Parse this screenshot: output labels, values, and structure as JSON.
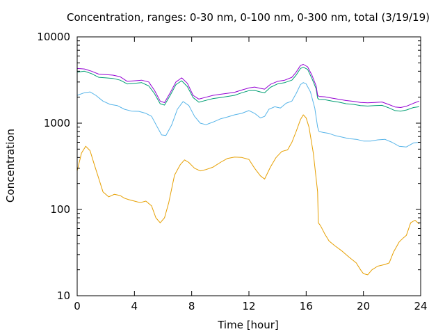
{
  "chart_data": {
    "type": "line",
    "title": "Concentration, ranges: 0-30 nm, 0-100 nm, 0-300 nm, total (3/19/19)",
    "xlabel": "Time [hour]",
    "ylabel": "Concentration",
    "xlim": [
      0,
      24
    ],
    "ylim": [
      10,
      10000
    ],
    "yscale": "log",
    "grid": false,
    "legend": "none",
    "x_ticks": [
      0,
      4,
      8,
      12,
      16,
      20,
      24
    ],
    "x_tick_labels": [
      "0",
      "4",
      "8",
      "12",
      "16",
      "20",
      "24"
    ],
    "y_ticks": [
      10,
      100,
      1000,
      10000
    ],
    "y_tick_labels": [
      "10",
      "100",
      "1000",
      "10000"
    ],
    "series": [
      {
        "color": "#e69f00",
        "x": [
          0,
          0.3,
          0.6,
          0.9,
          1.2,
          1.5,
          1.8,
          2.2,
          2.6,
          3.0,
          3.3,
          3.6,
          4.0,
          4.4,
          4.8,
          5.2,
          5.5,
          5.8,
          6.1,
          6.4,
          6.8,
          7.2,
          7.5,
          7.8,
          8.2,
          8.6,
          9.0,
          9.5,
          10.0,
          10.5,
          11.0,
          11.5,
          12.0,
          12.4,
          12.8,
          13.1,
          13.5,
          13.9,
          14.3,
          14.7,
          15.0,
          15.3,
          15.6,
          15.8,
          16.0,
          16.2,
          16.5,
          16.8,
          16.85,
          17.0,
          17.3,
          17.6,
          18.0,
          18.5,
          19.0,
          19.5,
          19.8,
          20.0,
          20.3,
          20.6,
          21.0,
          21.5,
          21.8,
          22.1,
          22.5,
          22.8,
          23.0,
          23.3,
          23.6,
          23.9
        ],
        "values": [
          280,
          450,
          540,
          480,
          330,
          230,
          160,
          140,
          150,
          145,
          135,
          130,
          125,
          120,
          125,
          110,
          80,
          70,
          80,
          120,
          250,
          330,
          375,
          350,
          300,
          280,
          290,
          310,
          350,
          390,
          405,
          400,
          380,
          300,
          245,
          225,
          310,
          400,
          470,
          490,
          600,
          800,
          1100,
          1250,
          1150,
          900,
          450,
          160,
          70,
          65,
          52,
          43,
          38,
          33,
          28,
          24,
          20,
          18,
          17.5,
          20,
          22,
          23,
          24,
          32,
          42,
          47,
          50,
          70,
          75,
          68
        ]
      },
      {
        "color": "#56b4e9",
        "x": [
          0,
          0.5,
          0.9,
          1.3,
          1.8,
          2.3,
          2.8,
          3.3,
          3.8,
          4.3,
          4.8,
          5.2,
          5.6,
          5.9,
          6.2,
          6.6,
          7.0,
          7.4,
          7.8,
          8.2,
          8.6,
          9.0,
          9.5,
          10.0,
          10.5,
          11.0,
          11.5,
          12.0,
          12.4,
          12.8,
          13.1,
          13.4,
          13.8,
          14.2,
          14.6,
          15.0,
          15.3,
          15.6,
          15.8,
          16.0,
          16.3,
          16.6,
          16.8,
          16.9,
          17.2,
          17.6,
          18.0,
          18.5,
          19.0,
          19.5,
          20.0,
          20.5,
          21.0,
          21.5,
          22.0,
          22.5,
          23.0,
          23.5,
          23.9
        ],
        "values": [
          2100,
          2250,
          2300,
          2100,
          1800,
          1650,
          1600,
          1450,
          1380,
          1370,
          1300,
          1200,
          900,
          730,
          720,
          950,
          1450,
          1780,
          1600,
          1200,
          1000,
          960,
          1030,
          1120,
          1180,
          1250,
          1300,
          1400,
          1300,
          1150,
          1200,
          1450,
          1550,
          1500,
          1700,
          1800,
          2200,
          2800,
          2950,
          2850,
          2300,
          1500,
          900,
          800,
          780,
          760,
          720,
          690,
          660,
          650,
          620,
          620,
          640,
          650,
          600,
          540,
          530,
          590,
          600
        ]
      },
      {
        "color": "#009e73",
        "x": [
          0,
          0.5,
          1.0,
          1.5,
          2.0,
          2.5,
          3.0,
          3.5,
          4.0,
          4.5,
          5.0,
          5.4,
          5.8,
          6.1,
          6.5,
          6.9,
          7.3,
          7.7,
          8.1,
          8.5,
          9.0,
          9.5,
          10.0,
          10.5,
          11.0,
          11.5,
          12.0,
          12.4,
          12.8,
          13.1,
          13.5,
          14.0,
          14.5,
          15.0,
          15.3,
          15.6,
          15.8,
          16.1,
          16.4,
          16.7,
          16.8,
          16.9,
          17.3,
          17.8,
          18.3,
          18.8,
          19.3,
          19.8,
          20.3,
          20.8,
          21.3,
          21.8,
          22.2,
          22.6,
          23.0,
          23.5,
          23.9
        ],
        "values": [
          3900,
          4000,
          3750,
          3400,
          3350,
          3300,
          3150,
          2850,
          2900,
          2950,
          2700,
          2200,
          1680,
          1620,
          2100,
          2800,
          3100,
          2650,
          1980,
          1750,
          1840,
          1930,
          1980,
          2040,
          2100,
          2250,
          2380,
          2400,
          2300,
          2250,
          2600,
          2850,
          2950,
          3150,
          3600,
          4300,
          4450,
          4200,
          3300,
          2500,
          1950,
          1880,
          1870,
          1800,
          1750,
          1680,
          1650,
          1600,
          1580,
          1600,
          1610,
          1500,
          1400,
          1380,
          1420,
          1520,
          1550
        ]
      },
      {
        "color": "#9400d3",
        "x": [
          0,
          0.5,
          1.0,
          1.5,
          2.0,
          2.5,
          3.0,
          3.5,
          4.0,
          4.5,
          5.0,
          5.4,
          5.8,
          6.1,
          6.5,
          6.9,
          7.3,
          7.7,
          8.1,
          8.5,
          9.0,
          9.5,
          10.0,
          10.5,
          11.0,
          11.5,
          12.0,
          12.4,
          12.8,
          13.1,
          13.5,
          14.0,
          14.5,
          15.0,
          15.3,
          15.6,
          15.8,
          16.1,
          16.4,
          16.7,
          16.8,
          16.9,
          17.3,
          17.8,
          18.3,
          18.8,
          19.3,
          19.8,
          20.3,
          20.8,
          21.3,
          21.8,
          22.2,
          22.6,
          23.0,
          23.5,
          23.9
        ],
        "values": [
          4300,
          4250,
          4000,
          3700,
          3650,
          3600,
          3450,
          3050,
          3100,
          3150,
          3000,
          2400,
          1800,
          1730,
          2250,
          3000,
          3350,
          2900,
          2100,
          1900,
          2000,
          2100,
          2160,
          2220,
          2280,
          2420,
          2560,
          2620,
          2530,
          2480,
          2820,
          3050,
          3150,
          3400,
          3900,
          4650,
          4800,
          4500,
          3600,
          2700,
          2100,
          2040,
          2020,
          1950,
          1890,
          1830,
          1790,
          1740,
          1720,
          1740,
          1760,
          1640,
          1540,
          1520,
          1570,
          1700,
          1800
        ]
      }
    ]
  }
}
